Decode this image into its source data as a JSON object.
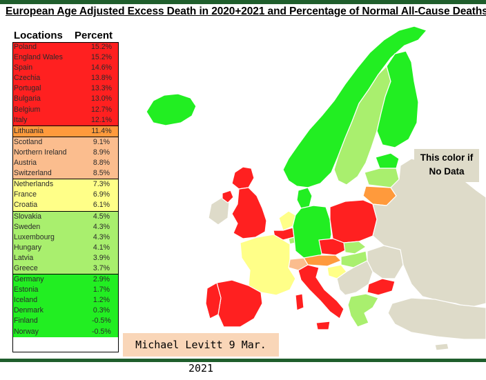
{
  "title": "European Age Adjusted Excess Death in 2020+2021 and Percentage of Normal All-Cause Deaths",
  "table": {
    "col_locations": "Locations",
    "col_percent": "Percent",
    "rows": [
      {
        "location": "Poland",
        "percent": "15.2%",
        "color": "#ff2020",
        "group_start": false
      },
      {
        "location": "England Wales",
        "percent": "15.2%",
        "color": "#ff2020",
        "group_start": false
      },
      {
        "location": "Spain",
        "percent": "14.6%",
        "color": "#ff2020",
        "group_start": false
      },
      {
        "location": "Czechia",
        "percent": "13.8%",
        "color": "#ff2020",
        "group_start": false
      },
      {
        "location": "Portugal",
        "percent": "13.3%",
        "color": "#ff2020",
        "group_start": false
      },
      {
        "location": "Bulgaria",
        "percent": "13.0%",
        "color": "#ff2020",
        "group_start": false
      },
      {
        "location": "Belgium",
        "percent": "12.7%",
        "color": "#ff2020",
        "group_start": false
      },
      {
        "location": "Italy",
        "percent": "12.1%",
        "color": "#ff2020",
        "group_start": false
      },
      {
        "location": "Lithuania",
        "percent": "11.4%",
        "color": "#ff9a3c",
        "group_start": true
      },
      {
        "location": "Scotland",
        "percent": "9.1%",
        "color": "#fbbd8e",
        "group_start": true
      },
      {
        "location": "Northern Ireland",
        "percent": "8.9%",
        "color": "#fbbd8e",
        "group_start": false
      },
      {
        "location": "Austria",
        "percent": "8.8%",
        "color": "#fbbd8e",
        "group_start": false
      },
      {
        "location": "Switzerland",
        "percent": "8.5%",
        "color": "#fbbd8e",
        "group_start": false
      },
      {
        "location": "Netherlands",
        "percent": "7.3%",
        "color": "#ffff88",
        "group_start": true
      },
      {
        "location": "France",
        "percent": "6.9%",
        "color": "#ffff88",
        "group_start": false
      },
      {
        "location": "Croatia",
        "percent": "6.1%",
        "color": "#ffff88",
        "group_start": false
      },
      {
        "location": "Slovakia",
        "percent": "4.5%",
        "color": "#a9ef6e",
        "group_start": true
      },
      {
        "location": "Sweden",
        "percent": "4.3%",
        "color": "#a9ef6e",
        "group_start": false
      },
      {
        "location": "Luxembourg",
        "percent": "4.3%",
        "color": "#a9ef6e",
        "group_start": false
      },
      {
        "location": "Hungary",
        "percent": "4.1%",
        "color": "#a9ef6e",
        "group_start": false
      },
      {
        "location": "Latvia",
        "percent": "3.9%",
        "color": "#a9ef6e",
        "group_start": false
      },
      {
        "location": "Greece",
        "percent": "3.7%",
        "color": "#a9ef6e",
        "group_start": false
      },
      {
        "location": "Germany",
        "percent": "2.9%",
        "color": "#22ee22",
        "group_start": true
      },
      {
        "location": "Estonia",
        "percent": "1.7%",
        "color": "#22ee22",
        "group_start": false
      },
      {
        "location": "Iceland",
        "percent": "1.2%",
        "color": "#22ee22",
        "group_start": false
      },
      {
        "location": "Denmark",
        "percent": "0.3%",
        "color": "#22ee22",
        "group_start": false
      },
      {
        "location": "Finland",
        "percent": "-0.5%",
        "color": "#22ee22",
        "group_start": false
      },
      {
        "location": "Norway",
        "percent": "-0.5%",
        "color": "#22ee22",
        "group_start": false
      }
    ]
  },
  "legend": {
    "no_data_line1": "This color if",
    "no_data_line2": "No Data",
    "no_data_color": "#dedbc9"
  },
  "credit": {
    "text": "Michael Levitt  9 Mar. 2021"
  },
  "colors": {
    "frame": "#1f5e2c",
    "red": "#ff2020",
    "orange": "#ff9a3c",
    "peach": "#fbbd8e",
    "yellow": "#ffff88",
    "light_green": "#a9ef6e",
    "green": "#22ee22",
    "no_data": "#dedbc9"
  }
}
